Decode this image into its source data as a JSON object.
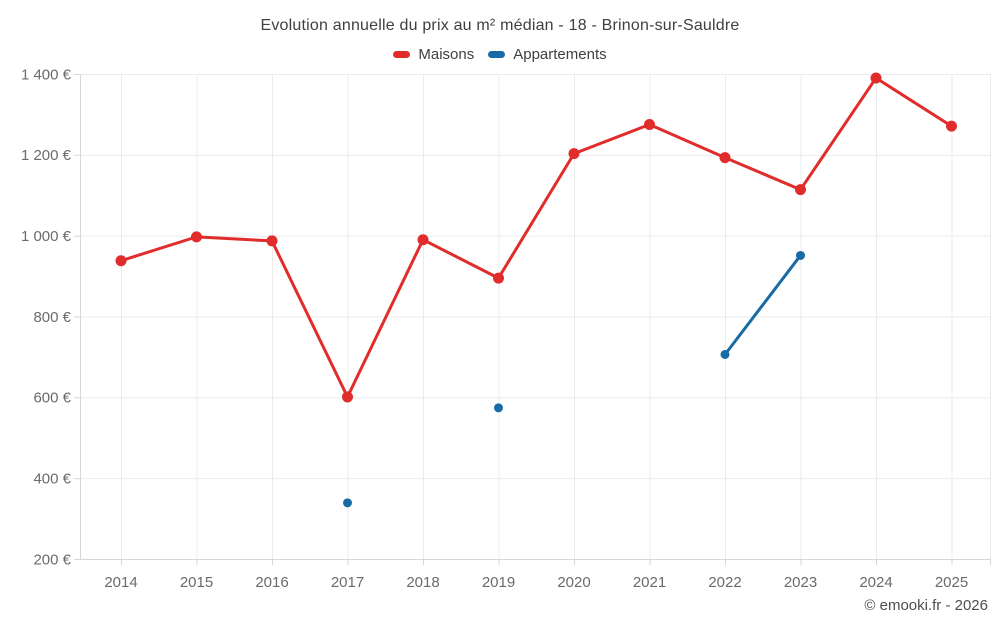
{
  "chart_data": {
    "type": "line",
    "title": "Evolution annuelle du prix au m² médian - 18 - Brinon-sur-Sauldre",
    "categories": [
      "2014",
      "2015",
      "2016",
      "2017",
      "2018",
      "2019",
      "2020",
      "2021",
      "2022",
      "2023",
      "2024",
      "2025"
    ],
    "series": [
      {
        "name": "Maisons",
        "color": "#e12c2c",
        "point_radius": 5.5,
        "values": [
          938,
          997,
          987,
          601,
          990,
          895,
          1203,
          1275,
          1193,
          1114,
          1390,
          1271
        ]
      },
      {
        "name": "Appartements",
        "color": "#186ba4",
        "point_radius": 4.5,
        "values": [
          null,
          null,
          null,
          339,
          null,
          574,
          null,
          null,
          706,
          951,
          null,
          null
        ]
      }
    ],
    "ylim": [
      200,
      1400
    ],
    "y_ticks": [
      {
        "value": 200,
        "label": "200 €"
      },
      {
        "value": 400,
        "label": "400 €"
      },
      {
        "value": 600,
        "label": "600 €"
      },
      {
        "value": 800,
        "label": "800 €"
      },
      {
        "value": 1000,
        "label": "1 000 €"
      },
      {
        "value": 1200,
        "label": "1 200 €"
      },
      {
        "value": 1400,
        "label": "1 400 €"
      }
    ],
    "grid": true,
    "legend_position": "top",
    "xlabel": "",
    "ylabel": ""
  },
  "footer": {
    "credit": "© emooki.fr - 2026"
  }
}
